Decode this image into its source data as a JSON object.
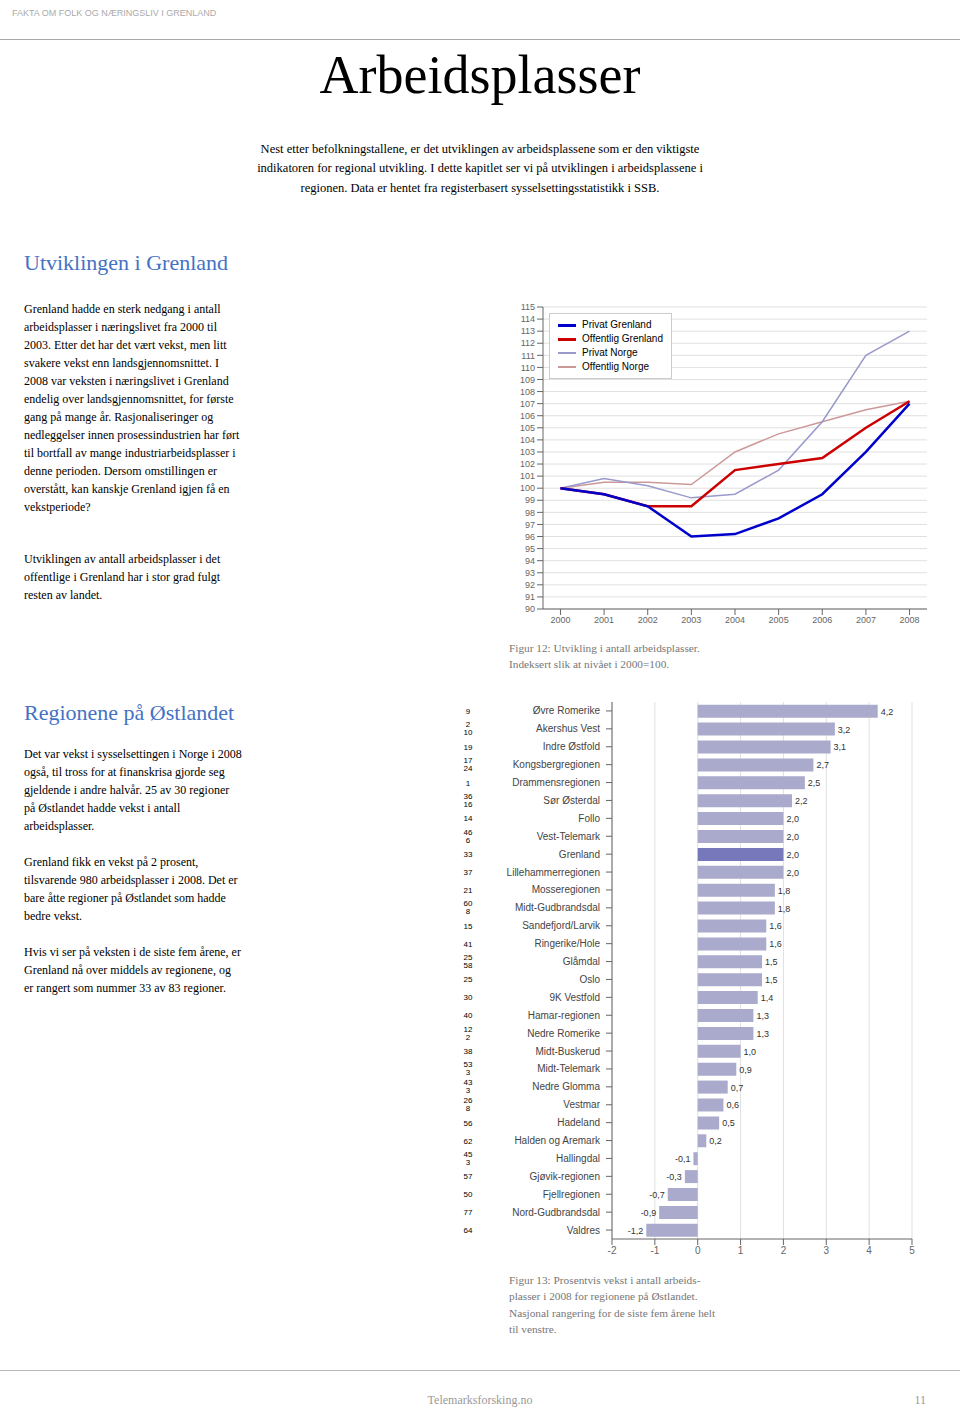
{
  "title": "Arbeidsplasser",
  "annotations": [
    "FAKTA OM FOLK OG NÆRINGSLIV I GRENLAND",
    "Nest etter befolkningstallene, er det utviklingen av arbeidsplassene som er den viktigste\nindikatoren for regional utvikling. I dette kapitlet ser vi på utviklingen i arbeidsplassene i\nregionen.  Data er hentet fra registerbasert sysselsettingsstatistikk i SSB.",
    "Utviklingen i Grenland",
    "Grenland hadde en sterk nedgang i antall\narbeidsplasser i næringslivet fra 2000 til\n2003.  Etter det har det vært vekst, men litt\nsvakere vekst enn landsgjennomsnittet.  I\n2008 var veksten i næringslivet i Grenland\nendelig over landsgjennomsnittet, for første\ngang på mange år.  Rasjonaliseringer og\nnedleggelser innen prosessindustrien har ført\ntil bortfall av mange industriarbeidsplasser i\ndenne perioden.  Dersom omstillingen er\noverstått, kan kanskje Grenland igjen få en\nvekstperiode?",
    "Utviklingen av antall arbeidsplasser i det\noffentlige i Grenland har i stor grad fulgt\nresten av landet.",
    "Regionene på Østlandet",
    "Det var vekst i sysselsettingen i Norge i 2008\nogså, til tross for at finanskrisa gjorde seg\ngjeldende i andre halvår.  25 av 30 regioner\npå Østlandet hadde vekst i antall\narbeidsplasser.",
    "Grenland fikk en vekst på 2 prosent,\ntilsvarende 980 arbeidsplasser i 2008.  Det er\nbare åtte regioner på Østlandet som hadde\nbedre vekst.",
    "Hvis vi ser på veksten i de siste fem årene, er\nGrenland nå over middels av regionene, og\ner rangert som nummer 33 av 83 regioner.",
    "Telemarksforsking.no",
    "11"
  ],
  "chart_data": [
    {
      "type": "line",
      "title": "Figur 12: Utvikling i antall arbeidsplasser.\nIndeksert slik at nivået i 2000=100.",
      "x": [
        2000,
        2001,
        2002,
        2003,
        2004,
        2005,
        2006,
        2007,
        2008
      ],
      "xlim": [
        1999.6,
        2008.4
      ],
      "xticks": [
        2000,
        2001,
        2002,
        2003,
        2004,
        2005,
        2006,
        2007,
        2008
      ],
      "ylim": [
        90,
        115
      ],
      "yticks": [
        90,
        91,
        92,
        93,
        94,
        95,
        96,
        97,
        98,
        99,
        100,
        101,
        102,
        103,
        104,
        105,
        106,
        107,
        108,
        109,
        110,
        111,
        112,
        113,
        114,
        115
      ],
      "grid": true,
      "legend": "upper left",
      "series": [
        {
          "name": "Privat Grenland",
          "color": "#0000CC",
          "values": [
            100,
            99.5,
            98.5,
            96.0,
            96.2,
            97.5,
            99.5,
            103.0,
            107.0
          ]
        },
        {
          "name": "Offentlig Grenland",
          "color": "#CC0000",
          "values": [
            100,
            99.5,
            98.5,
            98.5,
            101.5,
            102.0,
            102.5,
            105.0,
            107.2
          ]
        },
        {
          "name": "Privat Norge",
          "color": "#9999CC",
          "values": [
            100,
            100.8,
            100.2,
            99.2,
            99.5,
            101.5,
            105.5,
            111.0,
            113.0
          ]
        },
        {
          "name": "Offentlig Norge",
          "color": "#CC9999",
          "values": [
            100,
            100.5,
            100.5,
            100.3,
            103.0,
            104.5,
            105.5,
            106.5,
            107.2
          ]
        }
      ]
    },
    {
      "type": "bar",
      "orientation": "horizontal",
      "title": "Figur 13: Prosentvis vekst i antall arbeids-\nplasser i 2008 for regionene på Østlandet.\nNasjonal rangering for de siste fem årene helt\ntil venstre.",
      "categories": [
        "Øvre Romerike",
        "Akershus Vest",
        "Indre Østfold",
        "Kongsbergregionen",
        "Drammensregionen",
        "Sør Østerdal",
        "Follo",
        "Vest-Telemark",
        "Grenland",
        "Lillehammerregionen",
        "Mosseregionen",
        "Midt-Gudbrandsdal",
        "Sandefjord/Larvik",
        "Ringerike/Hole",
        "Glåmdal",
        "Oslo",
        "9K Vestfold",
        "Hamar-regionen",
        "Nedre Romerike",
        "Midt-Buskerud",
        "Midt-Telemark",
        "Nedre Glomma",
        "Vestmar",
        "Hadeland",
        "Halden og Aremark",
        "Hallingdal",
        "Gjøvik-regionen",
        "Fjellregionen",
        "Nord-Gudbrandsdal",
        "Valdres"
      ],
      "values": [
        4.2,
        3.2,
        3.1,
        2.7,
        2.5,
        2.2,
        2.0,
        2.0,
        2.0,
        2.0,
        1.8,
        1.8,
        1.6,
        1.6,
        1.5,
        1.5,
        1.4,
        1.3,
        1.3,
        1.0,
        0.9,
        0.7,
        0.6,
        0.5,
        0.2,
        -0.1,
        -0.3,
        -0.7,
        -0.9,
        -1.2
      ],
      "value_labels": [
        "4,2",
        "3,2",
        "3,1",
        "2,7",
        "2,5",
        "2,2",
        "2,0",
        "2,0",
        "2,0",
        "2,0",
        "1,8",
        "1,8",
        "1,6",
        "1,6",
        "1,5",
        "1,5",
        "1,4",
        "1,3",
        "1,3",
        "1,0",
        "0,9",
        "0,7",
        "0,6",
        "0,5",
        "0,2",
        "-0,1",
        "-0,3",
        "-0,7",
        "-0,9",
        "-1,2"
      ],
      "data_labels": true,
      "colors": [
        "#AAAACC",
        "#AAAACC",
        "#AAAACC",
        "#AAAACC",
        "#AAAACC",
        "#AAAACC",
        "#AAAACC",
        "#AAAACC",
        "#7777BB",
        "#AAAACC",
        "#AAAACC",
        "#AAAACC",
        "#AAAACC",
        "#AAAACC",
        "#AAAACC",
        "#AAAACC",
        "#AAAACC",
        "#AAAACC",
        "#AAAACC",
        "#AAAACC",
        "#AAAACC",
        "#AAAACC",
        "#AAAACC",
        "#AAAACC",
        "#AAAACC",
        "#AAAACC",
        "#AAAACC",
        "#AAAACC",
        "#AAAACC",
        "#AAAACC"
      ],
      "xlim": [
        -2,
        5
      ],
      "xticks": [
        -2,
        -1,
        0,
        1,
        2,
        3,
        4,
        5
      ],
      "grid": true,
      "rank_line1": [
        "9",
        "2",
        "19",
        "17",
        "1",
        "36",
        "14",
        "46",
        "33",
        "37",
        "21",
        "60",
        "15",
        "41",
        "25",
        "25",
        "30",
        "40",
        "12",
        "38",
        "53",
        "43",
        "26",
        "56",
        "62",
        "45",
        "57",
        "50",
        "77",
        "64"
      ],
      "rank_line2": [
        null,
        "10",
        null,
        "24",
        null,
        "16",
        null,
        "6",
        null,
        null,
        null,
        "8",
        null,
        null,
        "58",
        null,
        null,
        null,
        "2",
        null,
        "3",
        "3",
        "8",
        null,
        null,
        "3",
        null,
        null,
        null,
        null
      ]
    }
  ]
}
